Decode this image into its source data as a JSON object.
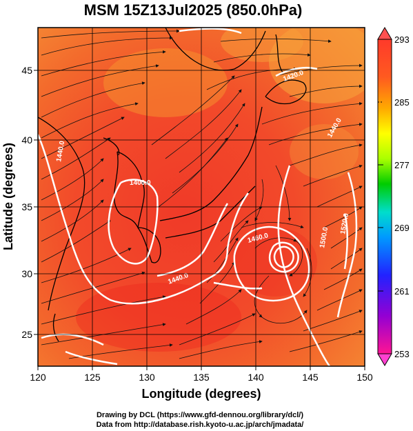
{
  "title": "MSM 15Z13Jul2025 (850.0hPa)",
  "axes": {
    "xlabel": "Longitude (degrees)",
    "ylabel": "Latitude (degrees)",
    "x_ticks": [
      "120",
      "125",
      "130",
      "135",
      "140",
      "145",
      "150"
    ],
    "y_ticks": [
      "25",
      "30",
      "35",
      "40",
      "45"
    ],
    "x_range": [
      120,
      150
    ],
    "y_range": [
      22.4,
      47.6
    ]
  },
  "colorbar": {
    "ticks": [
      "293",
      "285",
      "277",
      "269",
      "261",
      "253"
    ],
    "min": 253,
    "max": 293,
    "colors": [
      "#ff1493",
      "#9400d3",
      "#2222ff",
      "#0099ff",
      "#00ddcc",
      "#00cc00",
      "#aaff00",
      "#ffff00",
      "#ffaa00",
      "#ff4400",
      "#ff3030"
    ]
  },
  "contour_labels": [
    "1440.0",
    "1400.0",
    "1420.0",
    "1440.0",
    "1460.0",
    "1500.0",
    "1520.0",
    "1440.0"
  ],
  "credits": {
    "line1": "Drawing by DCL (https://www.gfd-dennou.org/library/dcl/)",
    "line2": "Data from http://database.rish.kyoto-u.ac.jp/arch/jmadata/"
  }
}
